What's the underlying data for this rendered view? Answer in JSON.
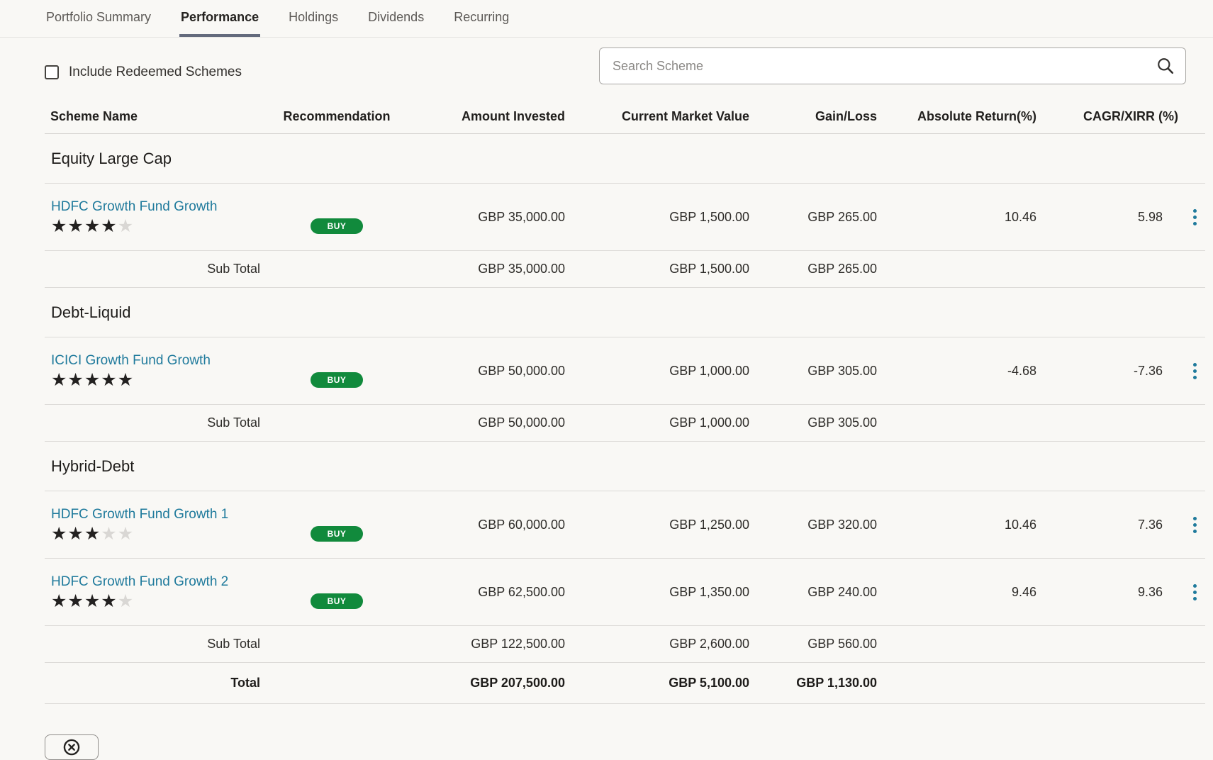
{
  "tabs": [
    {
      "label": "Portfolio Summary",
      "active": false
    },
    {
      "label": "Performance",
      "active": true
    },
    {
      "label": "Holdings",
      "active": false
    },
    {
      "label": "Dividends",
      "active": false
    },
    {
      "label": "Recurring",
      "active": false
    }
  ],
  "filters": {
    "include_redeemed_label": "Include Redeemed Schemes",
    "checked": false
  },
  "search": {
    "placeholder": "Search Scheme"
  },
  "table": {
    "columns": [
      "Scheme Name",
      "Recommendation",
      "Amount Invested",
      "Current Market Value",
      "Gain/Loss",
      "Absolute Return(%)",
      "CAGR/XIRR (%)"
    ],
    "groups": [
      {
        "name": "Equity Large Cap",
        "rows": [
          {
            "scheme": "HDFC Growth Fund Growth",
            "rating": 4,
            "rating_max": 5,
            "recommendation": "BUY",
            "amount_invested": "GBP 35,000.00",
            "market_value": "GBP 1,500.00",
            "gain_loss": "GBP 265.00",
            "absolute_return": "10.46",
            "cagr_xirr": "5.98"
          }
        ],
        "subtotal": {
          "label": "Sub Total",
          "amount_invested": "GBP 35,000.00",
          "market_value": "GBP 1,500.00",
          "gain_loss": "GBP 265.00"
        }
      },
      {
        "name": "Debt-Liquid",
        "rows": [
          {
            "scheme": "ICICI Growth Fund Growth",
            "rating": 5,
            "rating_max": 5,
            "recommendation": "BUY",
            "amount_invested": "GBP 50,000.00",
            "market_value": "GBP 1,000.00",
            "gain_loss": "GBP 305.00",
            "absolute_return": "-4.68",
            "cagr_xirr": "-7.36"
          }
        ],
        "subtotal": {
          "label": "Sub Total",
          "amount_invested": "GBP 50,000.00",
          "market_value": "GBP 1,000.00",
          "gain_loss": "GBP 305.00"
        }
      },
      {
        "name": "Hybrid-Debt",
        "rows": [
          {
            "scheme": "HDFC Growth Fund Growth 1",
            "rating": 3,
            "rating_max": 5,
            "recommendation": "BUY",
            "amount_invested": "GBP 60,000.00",
            "market_value": "GBP 1,250.00",
            "gain_loss": "GBP 320.00",
            "absolute_return": "10.46",
            "cagr_xirr": "7.36"
          },
          {
            "scheme": "HDFC Growth Fund Growth 2",
            "rating": 4,
            "rating_max": 5,
            "recommendation": "BUY",
            "amount_invested": "GBP 62,500.00",
            "market_value": "GBP 1,350.00",
            "gain_loss": "GBP 240.00",
            "absolute_return": "9.46",
            "cagr_xirr": "9.36"
          }
        ],
        "subtotal": {
          "label": "Sub Total",
          "amount_invested": "GBP 122,500.00",
          "market_value": "GBP 2,600.00",
          "gain_loss": "GBP 560.00"
        }
      }
    ],
    "total": {
      "label": "Total",
      "amount_invested": "GBP 207,500.00",
      "market_value": "GBP 5,100.00",
      "gain_loss": "GBP 1,130.00"
    }
  },
  "colors": {
    "badge_green": "#118a3c",
    "link_teal": "#1f7a9c",
    "kebab_blue": "#1f7a9c",
    "active_tab_underline": "#636a7c",
    "page_background": "#f9f8f5"
  }
}
